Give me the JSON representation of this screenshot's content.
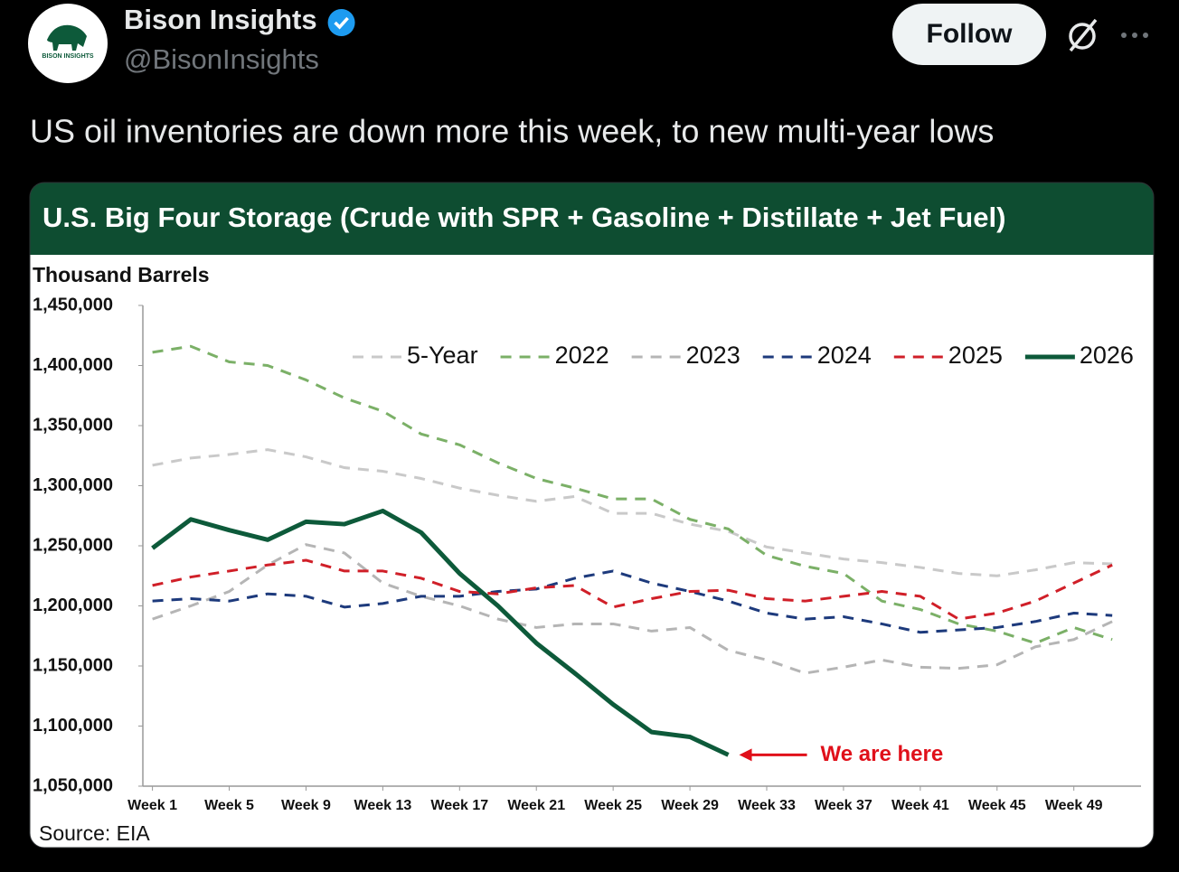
{
  "header": {
    "name": "Bison Insights",
    "handle": "@BisonInsights",
    "follow": "Follow",
    "avatar_text": "BISON INSIGHTS"
  },
  "tweet": {
    "text": "US oil inventories are down more this week, to new multi-year lows"
  },
  "chart_data": {
    "type": "line",
    "title": "U.S. Big Four Storage (Crude with SPR + Gasoline + Distillate + Jet Fuel)",
    "y_label": "Thousand Barrels",
    "source": "Source: EIA",
    "annotation": "We are here",
    "annotation_color": "#e0101a",
    "grid": false,
    "legend": "top",
    "x": [
      1,
      3,
      5,
      7,
      9,
      11,
      13,
      15,
      17,
      19,
      21,
      23,
      25,
      27,
      29,
      31,
      33,
      35,
      37,
      39,
      41,
      43,
      45,
      47,
      49,
      51
    ],
    "xlim": [
      0.5,
      52.5
    ],
    "xticks": [
      {
        "value": 1,
        "label": "Week 1"
      },
      {
        "value": 5,
        "label": "Week 5"
      },
      {
        "value": 9,
        "label": "Week 9"
      },
      {
        "value": 13,
        "label": "Week 13"
      },
      {
        "value": 17,
        "label": "Week 17"
      },
      {
        "value": 21,
        "label": "Week 21"
      },
      {
        "value": 25,
        "label": "Week 25"
      },
      {
        "value": 29,
        "label": "Week 29"
      },
      {
        "value": 33,
        "label": "Week 33"
      },
      {
        "value": 37,
        "label": "Week 37"
      },
      {
        "value": 41,
        "label": "Week 41"
      },
      {
        "value": 45,
        "label": "Week 45"
      },
      {
        "value": 49,
        "label": "Week 49"
      }
    ],
    "ylim": [
      1050000,
      1450000
    ],
    "yticks": [
      {
        "value": 1050000,
        "label": "1,050,000"
      },
      {
        "value": 1100000,
        "label": "1,100,000"
      },
      {
        "value": 1150000,
        "label": "1,150,000"
      },
      {
        "value": 1200000,
        "label": "1,200,000"
      },
      {
        "value": 1250000,
        "label": "1,250,000"
      },
      {
        "value": 1300000,
        "label": "1,300,000"
      },
      {
        "value": 1350000,
        "label": "1,350,000"
      },
      {
        "value": 1400000,
        "label": "1,400,000"
      },
      {
        "value": 1450000,
        "label": "1,450,000"
      }
    ],
    "series": [
      {
        "name": "5-Year",
        "color": "#c9c9c9",
        "style": "dashed",
        "values": [
          1317000,
          1323000,
          1326000,
          1330000,
          1324000,
          1315000,
          1312000,
          1306000,
          1298000,
          1292000,
          1287000,
          1291000,
          1277000,
          1277000,
          1268000,
          1262000,
          1249000,
          1244000,
          1239000,
          1236000,
          1232000,
          1227000,
          1225000,
          1230000,
          1236000,
          1235000
        ]
      },
      {
        "name": "2022",
        "color": "#7bb067",
        "style": "dashed",
        "values": [
          1411000,
          1416000,
          1403000,
          1400000,
          1388000,
          1373000,
          1362000,
          1343000,
          1334000,
          1319000,
          1306000,
          1298000,
          1289000,
          1289000,
          1272000,
          1264000,
          1242000,
          1233000,
          1227000,
          1204000,
          1197000,
          1185000,
          1179000,
          1169000,
          1182000,
          1172000
        ]
      },
      {
        "name": "2023",
        "color": "#b5b5b5",
        "style": "dashed",
        "values": [
          1189000,
          1200000,
          1212000,
          1234000,
          1251000,
          1244000,
          1219000,
          1208000,
          1200000,
          1189000,
          1182000,
          1185000,
          1185000,
          1179000,
          1182000,
          1163000,
          1155000,
          1144000,
          1149000,
          1155000,
          1149000,
          1148000,
          1151000,
          1166000,
          1172000,
          1187000
        ]
      },
      {
        "name": "2024",
        "color": "#1d3a7c",
        "style": "dashed",
        "values": [
          1204000,
          1206000,
          1204000,
          1210000,
          1208000,
          1199000,
          1202000,
          1208000,
          1208000,
          1212000,
          1214000,
          1223000,
          1229000,
          1219000,
          1212000,
          1204000,
          1194000,
          1189000,
          1191000,
          1185000,
          1178000,
          1180000,
          1182000,
          1187000,
          1194000,
          1192000
        ]
      },
      {
        "name": "2025",
        "color": "#d01f28",
        "style": "dashed",
        "values": [
          1217000,
          1224000,
          1229000,
          1234000,
          1238000,
          1229000,
          1229000,
          1223000,
          1212000,
          1210000,
          1215000,
          1217000,
          1199000,
          1206000,
          1212000,
          1213000,
          1206000,
          1204000,
          1208000,
          1212000,
          1208000,
          1189000,
          1194000,
          1204000,
          1219000,
          1234000
        ]
      },
      {
        "name": "2026",
        "color": "#0d5a3a",
        "style": "solid",
        "values": [
          1248000,
          1272000,
          1263000,
          1255000,
          1270000,
          1268000,
          1279000,
          1261000,
          1227000,
          1200000,
          1169000,
          1144000,
          1118000,
          1095000,
          1091000,
          1076000,
          null,
          null,
          null,
          null,
          null,
          null,
          null,
          null,
          null,
          null
        ]
      }
    ]
  }
}
